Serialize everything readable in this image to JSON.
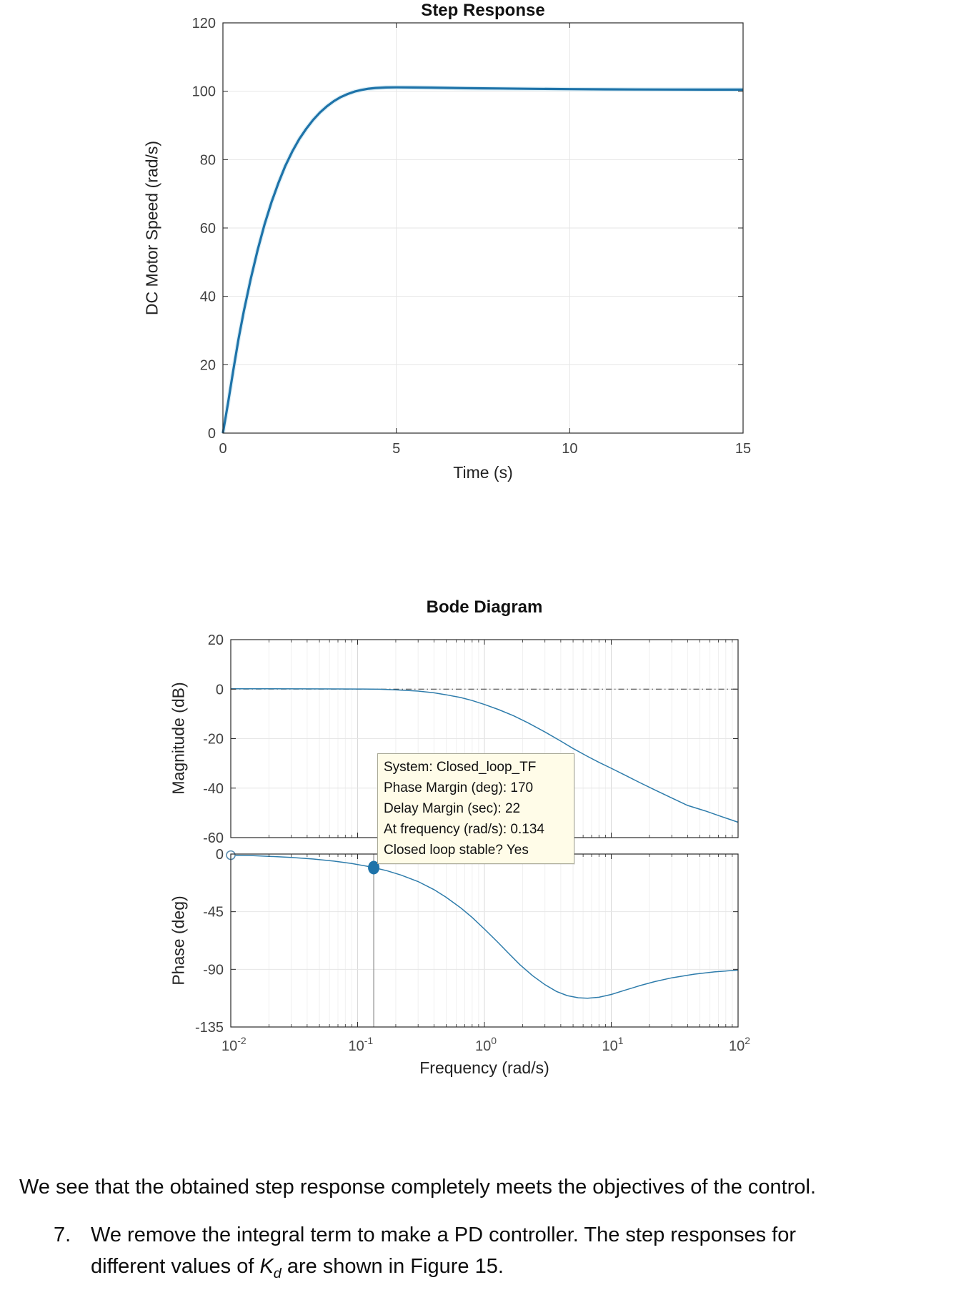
{
  "page": {
    "background": "#ffffff"
  },
  "colors": {
    "curve_main": "#1e73a9",
    "curve_halo": "#c4e3f0",
    "bode_curve": "#2e7cab",
    "grid": "#e6e6e6",
    "grid_decade": "#d9d9d9",
    "grid_minor": "#f0f0f0",
    "spine": "#2a2a2a",
    "ref_line": "#3c3c3c",
    "marker_fill": "#1e73a9",
    "marker_line": "#8f8f8f",
    "open_circle_stroke": "#5b8db0"
  },
  "chart_data": [
    {
      "type": "line",
      "title": "Step Response",
      "xlabel": "Time (s)",
      "ylabel": "DC Motor Speed (rad/s)",
      "xlim": [
        0,
        15
      ],
      "ylim": [
        0,
        120
      ],
      "xticks": [
        0,
        5,
        10,
        15
      ],
      "yticks": [
        0,
        20,
        40,
        60,
        80,
        100,
        120
      ],
      "grid": true,
      "series": [
        {
          "name": "closed-loop step response",
          "points": [
            [
              0,
              0
            ],
            [
              0.15,
              9
            ],
            [
              0.3,
              18.5
            ],
            [
              0.45,
              27.5
            ],
            [
              0.6,
              35.5
            ],
            [
              0.8,
              45
            ],
            [
              1.0,
              53.5
            ],
            [
              1.2,
              61
            ],
            [
              1.4,
              67.5
            ],
            [
              1.6,
              73.2
            ],
            [
              1.8,
              78.2
            ],
            [
              2.0,
              82.4
            ],
            [
              2.2,
              86
            ],
            [
              2.4,
              89
            ],
            [
              2.6,
              91.6
            ],
            [
              2.8,
              93.8
            ],
            [
              3.0,
              95.6
            ],
            [
              3.2,
              97.1
            ],
            [
              3.4,
              98.3
            ],
            [
              3.6,
              99.2
            ],
            [
              3.8,
              99.9
            ],
            [
              4.0,
              100.4
            ],
            [
              4.2,
              100.75
            ],
            [
              4.4,
              100.95
            ],
            [
              4.7,
              101.1
            ],
            [
              5.0,
              101.15
            ],
            [
              5.5,
              101.1
            ],
            [
              6.0,
              101.05
            ],
            [
              6.5,
              100.98
            ],
            [
              7.0,
              100.9
            ],
            [
              7.5,
              100.85
            ],
            [
              8.0,
              100.8
            ],
            [
              9.0,
              100.7
            ],
            [
              10.0,
              100.62
            ],
            [
              11.0,
              100.56
            ],
            [
              12.0,
              100.52
            ],
            [
              13.0,
              100.5
            ],
            [
              14.0,
              100.48
            ],
            [
              15.0,
              100.47
            ]
          ]
        }
      ]
    },
    {
      "type": "line",
      "title": "Bode Diagram",
      "ylabel": "Magnitude (dB)",
      "xscale": "log",
      "xlim": [
        0.01,
        100
      ],
      "ylim": [
        -60,
        20
      ],
      "yticks": [
        -60,
        -40,
        -20,
        0,
        20
      ],
      "grid": true,
      "ref_line_y": 0,
      "series": [
        {
          "name": "magnitude",
          "points": [
            [
              0.01,
              0.12
            ],
            [
              0.02,
              0.12
            ],
            [
              0.04,
              0.1
            ],
            [
              0.07,
              0.08
            ],
            [
              0.1,
              0.05
            ],
            [
              0.15,
              -0.05
            ],
            [
              0.2,
              -0.3
            ],
            [
              0.3,
              -0.8
            ],
            [
              0.4,
              -1.5
            ],
            [
              0.5,
              -2.3
            ],
            [
              0.65,
              -3.4
            ],
            [
              0.8,
              -4.6
            ],
            [
              1.0,
              -6.2
            ],
            [
              1.3,
              -8.3
            ],
            [
              1.7,
              -10.8
            ],
            [
              2.2,
              -13.6
            ],
            [
              3.0,
              -17.3
            ],
            [
              4.0,
              -21
            ],
            [
              5.0,
              -24
            ],
            [
              6.5,
              -27.2
            ],
            [
              8.0,
              -29.6
            ],
            [
              10,
              -32
            ],
            [
              13,
              -34.9
            ],
            [
              17,
              -37.9
            ],
            [
              22,
              -40.7
            ],
            [
              30,
              -44
            ],
            [
              40,
              -47
            ],
            [
              55,
              -49.2
            ],
            [
              75,
              -51.6
            ],
            [
              100,
              -53.8
            ]
          ]
        }
      ]
    },
    {
      "type": "line",
      "ylabel": "Phase (deg)",
      "xlabel": "Frequency  (rad/s)",
      "xscale": "log",
      "xlim": [
        0.01,
        100
      ],
      "ylim": [
        -135,
        0
      ],
      "yticks": [
        -135,
        -90,
        -45,
        0
      ],
      "xtick_labels": [
        {
          "base": "10",
          "exp": "-2",
          "decade": -2
        },
        {
          "base": "10",
          "exp": "-1",
          "decade": -1
        },
        {
          "base": "10",
          "exp": "0",
          "decade": 0
        },
        {
          "base": "10",
          "exp": "1",
          "decade": 1
        },
        {
          "base": "10",
          "exp": "2",
          "decade": 2
        }
      ],
      "grid": true,
      "markers": {
        "open_circle": {
          "x": 0.01,
          "y": -0.9
        },
        "filled_dot": {
          "x": 0.134,
          "y": -10.6
        },
        "vline_x": 0.134
      },
      "series": [
        {
          "name": "phase",
          "points": [
            [
              0.01,
              -0.9
            ],
            [
              0.015,
              -1.3
            ],
            [
              0.02,
              -1.8
            ],
            [
              0.03,
              -2.6
            ],
            [
              0.045,
              -3.9
            ],
            [
              0.065,
              -5.5
            ],
            [
              0.09,
              -7.4
            ],
            [
              0.12,
              -9.6
            ],
            [
              0.134,
              -10.6
            ],
            [
              0.17,
              -13
            ],
            [
              0.22,
              -16.4
            ],
            [
              0.3,
              -21.5
            ],
            [
              0.4,
              -27.8
            ],
            [
              0.5,
              -33.8
            ],
            [
              0.65,
              -42
            ],
            [
              0.8,
              -49.5
            ],
            [
              1.0,
              -58.6
            ],
            [
              1.25,
              -68
            ],
            [
              1.55,
              -77.5
            ],
            [
              1.9,
              -86.3
            ],
            [
              2.4,
              -95
            ],
            [
              3.0,
              -102
            ],
            [
              3.7,
              -107.3
            ],
            [
              4.5,
              -110.5
            ],
            [
              5.5,
              -112.2
            ],
            [
              6.5,
              -112.6
            ],
            [
              8.0,
              -111.8
            ],
            [
              10,
              -109.6
            ],
            [
              13,
              -106.1
            ],
            [
              17,
              -102.6
            ],
            [
              22,
              -99.6
            ],
            [
              30,
              -96.6
            ],
            [
              45,
              -93.8
            ],
            [
              65,
              -92
            ],
            [
              100,
              -90.6
            ]
          ]
        }
      ]
    }
  ],
  "datatip": {
    "lines": [
      "System: Closed_loop_TF",
      "Phase Margin (deg): 170",
      "Delay Margin (sec): 22",
      "At frequency (rad/s): 0.134",
      "Closed loop stable? Yes"
    ]
  },
  "body": {
    "paragraph": "We see that the obtained step response completely meets the objectives of the control.",
    "item_number": "7.",
    "item_line1": "We remove the integral term to make a PD controller. The step responses for",
    "item_line2_pre": "different values of ",
    "item_k": "K",
    "item_k_sub": "d",
    "item_line2_post": " are shown in Figure 15."
  }
}
